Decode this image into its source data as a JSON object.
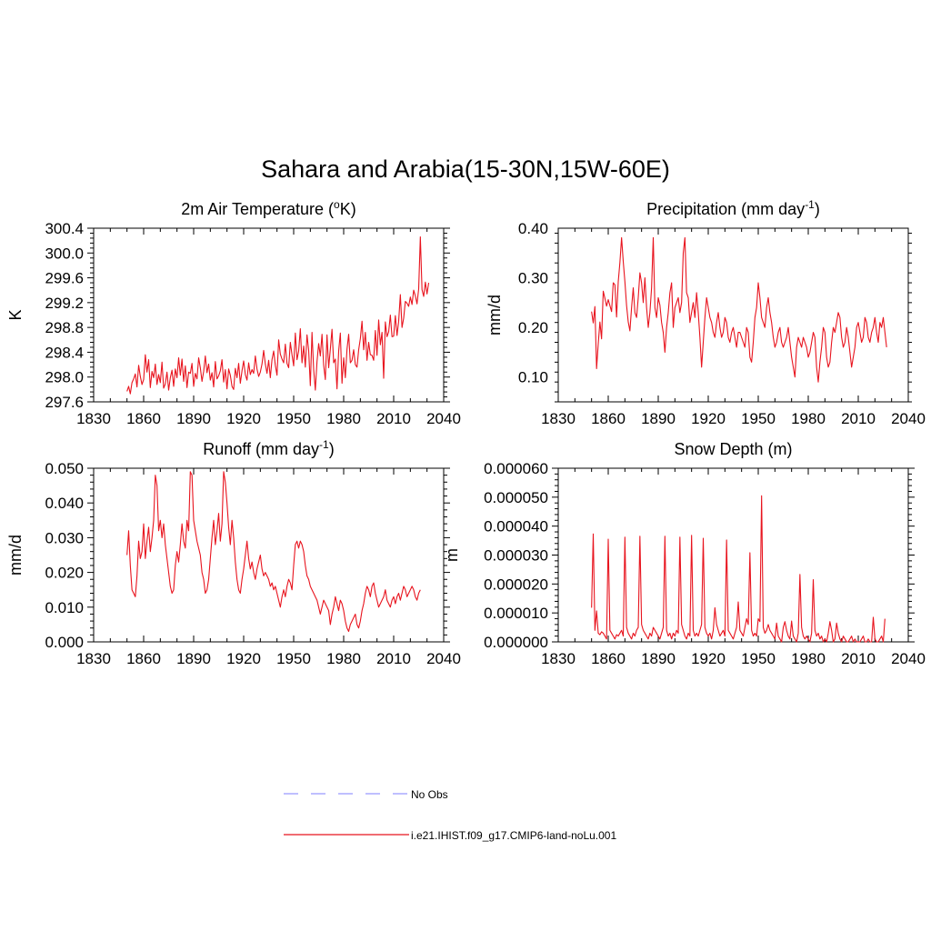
{
  "figure": {
    "title": "Sahara and Arabia(15-30N,15W-60E)",
    "line_color": "#e8141e",
    "obs_color": "#9999ff"
  },
  "legend": {
    "placement": "bottom-center",
    "entries": [
      {
        "label": "No Obs",
        "style": "dashed",
        "color": "#9999ff"
      },
      {
        "label": "i.e21.IHIST.f09_g17.CMIP6-land-noLu.001",
        "style": "solid",
        "color": "#e8141e"
      }
    ]
  },
  "chart_data": [
    {
      "id": "temp",
      "type": "line",
      "title": "2m Air Temperature (",
      "title_sup": "o",
      "title_after": "K)",
      "ylabel": "K",
      "xlim": [
        1830,
        2040
      ],
      "ylim": [
        297.6,
        300.4
      ],
      "xticks": [
        1830,
        1860,
        1890,
        1920,
        1950,
        1980,
        2010,
        2040
      ],
      "yticks": [
        297.6,
        298.0,
        298.4,
        298.8,
        299.2,
        299.6,
        300.0,
        300.4
      ],
      "ytick_labels": [
        "297.6",
        "298.0",
        "298.4",
        "298.8",
        "299.2",
        "299.6",
        "300.0",
        "300.4"
      ],
      "series": [
        {
          "x_start": 1850,
          "values": [
            297.77,
            297.85,
            297.73,
            297.91,
            297.97,
            298.05,
            297.84,
            298.19,
            298.01,
            297.88,
            297.96,
            298.36,
            298.08,
            298.28,
            297.83,
            298.09,
            297.99,
            298.21,
            297.88,
            298.04,
            297.91,
            298.24,
            297.82,
            297.89,
            298.08,
            297.79,
            297.99,
            298.11,
            297.85,
            298.13,
            297.99,
            298.31,
            298.03,
            298.29,
            297.93,
            298.18,
            297.83,
            298.08,
            298.06,
            298.22,
            297.85,
            298.06,
            297.97,
            298.31,
            298.15,
            297.93,
            298.09,
            298.34,
            298.07,
            298.21,
            297.95,
            298.07,
            297.84,
            298.25,
            297.97,
            298.02,
            298.1,
            298.28,
            297.92,
            298.12,
            297.81,
            298.13,
            298.03,
            297.85,
            297.8,
            298.14,
            297.99,
            298.22,
            297.9,
            298.1,
            298.26,
            298.04,
            297.95,
            298.23,
            298.04,
            298.12,
            298.06,
            298.34,
            298.13,
            298.01,
            298.08,
            298.21,
            298.43,
            298.21,
            298.06,
            298.27,
            297.99,
            298.28,
            298.42,
            298.19,
            298.03,
            298.6,
            298.37,
            298.29,
            298.23,
            298.53,
            298.22,
            298.15,
            298.56,
            298.36,
            298.18,
            298.71,
            298.28,
            298.42,
            298.78,
            298.23,
            298.5,
            298.16,
            298.68,
            298.43,
            297.86,
            298.72,
            298.12,
            297.79,
            298.25,
            298.54,
            298.34,
            298.69,
            298.19,
            297.96,
            298.68,
            298.15,
            298.45,
            298.77,
            298.23,
            298.29,
            297.81,
            298.42,
            298.71,
            297.9,
            298.31,
            297.99,
            298.45,
            298.69,
            298.23,
            298.27,
            298.44,
            298.2,
            298.16,
            298.44,
            298.62,
            298.9,
            298.44,
            298.72,
            298.27,
            298.56,
            298.36,
            298.35,
            298.27,
            298.75,
            298.35,
            298.92,
            298.52,
            298.72,
            297.98,
            298.89,
            298.65,
            298.73,
            299.0,
            298.65,
            298.66,
            298.99,
            298.67,
            298.9,
            299.33,
            298.8,
            298.95,
            299.22,
            299.19,
            299.14,
            299.29,
            299.17,
            299.4,
            299.31,
            299.18,
            299.42,
            300.26,
            299.41,
            299.3,
            299.53,
            299.34,
            299.52
          ]
        }
      ]
    },
    {
      "id": "precip",
      "type": "line",
      "title": "Precipitation (mm day",
      "title_sup": "-1",
      "title_after": ")",
      "ylabel": "mm/d",
      "xlim": [
        1830,
        2040
      ],
      "ylim": [
        0.05,
        0.4
      ],
      "xticks": [
        1830,
        1860,
        1890,
        1920,
        1950,
        1980,
        2010,
        2040
      ],
      "yticks": [
        0.1,
        0.2,
        0.3,
        0.4
      ],
      "ytick_labels": [
        "0.10",
        "0.20",
        "0.30",
        "0.40"
      ],
      "series": [
        {
          "x_start": 1850,
          "values": [
            0.232,
            0.209,
            0.242,
            0.117,
            0.167,
            0.211,
            0.177,
            0.273,
            0.259,
            0.243,
            0.256,
            0.244,
            0.232,
            0.29,
            0.286,
            0.221,
            0.292,
            0.331,
            0.381,
            0.333,
            0.292,
            0.244,
            0.211,
            0.193,
            0.24,
            0.28,
            0.23,
            0.22,
            0.26,
            0.31,
            0.29,
            0.25,
            0.3,
            0.24,
            0.2,
            0.23,
            0.28,
            0.381,
            0.24,
            0.22,
            0.26,
            0.245,
            0.21,
            0.19,
            0.15,
            0.2,
            0.23,
            0.27,
            0.29,
            0.2,
            0.24,
            0.25,
            0.26,
            0.23,
            0.25,
            0.35,
            0.381,
            0.27,
            0.26,
            0.21,
            0.23,
            0.25,
            0.22,
            0.27,
            0.23,
            0.18,
            0.12,
            0.17,
            0.22,
            0.26,
            0.24,
            0.22,
            0.21,
            0.19,
            0.18,
            0.21,
            0.23,
            0.2,
            0.18,
            0.19,
            0.22,
            0.21,
            0.18,
            0.17,
            0.19,
            0.2,
            0.18,
            0.16,
            0.19,
            0.19,
            0.18,
            0.17,
            0.16,
            0.2,
            0.19,
            0.14,
            0.13,
            0.17,
            0.22,
            0.24,
            0.29,
            0.26,
            0.22,
            0.21,
            0.2,
            0.24,
            0.26,
            0.23,
            0.21,
            0.18,
            0.16,
            0.17,
            0.19,
            0.2,
            0.17,
            0.16,
            0.17,
            0.18,
            0.2,
            0.17,
            0.14,
            0.12,
            0.1,
            0.16,
            0.18,
            0.17,
            0.16,
            0.18,
            0.17,
            0.16,
            0.14,
            0.15,
            0.17,
            0.19,
            0.18,
            0.12,
            0.09,
            0.13,
            0.16,
            0.2,
            0.19,
            0.14,
            0.12,
            0.13,
            0.17,
            0.2,
            0.19,
            0.21,
            0.23,
            0.22,
            0.18,
            0.16,
            0.17,
            0.2,
            0.18,
            0.15,
            0.12,
            0.14,
            0.16,
            0.2,
            0.21,
            0.19,
            0.17,
            0.18,
            0.22,
            0.21,
            0.18,
            0.17,
            0.19,
            0.2,
            0.22,
            0.19,
            0.17,
            0.21,
            0.2,
            0.22,
            0.19,
            0.16
          ]
        }
      ]
    },
    {
      "id": "runoff",
      "type": "line",
      "title": "Runoff (mm day",
      "title_sup": "-1",
      "title_after": ")",
      "ylabel": "mm/d",
      "xlim": [
        1830,
        2040
      ],
      "ylim": [
        0.0,
        0.05
      ],
      "xticks": [
        1830,
        1860,
        1890,
        1920,
        1950,
        1980,
        2010,
        2040
      ],
      "yticks": [
        0.0,
        0.01,
        0.02,
        0.03,
        0.04,
        0.05
      ],
      "ytick_labels": [
        "0.000",
        "0.010",
        "0.020",
        "0.030",
        "0.040",
        "0.050"
      ],
      "series": [
        {
          "x_start": 1850,
          "values": [
            0.025,
            0.032,
            0.022,
            0.015,
            0.014,
            0.013,
            0.019,
            0.029,
            0.024,
            0.026,
            0.034,
            0.024,
            0.029,
            0.033,
            0.026,
            0.03,
            0.035,
            0.048,
            0.045,
            0.032,
            0.035,
            0.03,
            0.034,
            0.028,
            0.024,
            0.02,
            0.016,
            0.014,
            0.015,
            0.022,
            0.026,
            0.023,
            0.028,
            0.034,
            0.029,
            0.027,
            0.035,
            0.032,
            0.049,
            0.048,
            0.035,
            0.032,
            0.029,
            0.027,
            0.025,
            0.02,
            0.018,
            0.014,
            0.015,
            0.018,
            0.024,
            0.03,
            0.035,
            0.028,
            0.032,
            0.037,
            0.029,
            0.034,
            0.049,
            0.046,
            0.04,
            0.033,
            0.028,
            0.035,
            0.03,
            0.023,
            0.018,
            0.015,
            0.014,
            0.018,
            0.021,
            0.025,
            0.029,
            0.024,
            0.021,
            0.023,
            0.02,
            0.018,
            0.021,
            0.023,
            0.025,
            0.021,
            0.019,
            0.02,
            0.019,
            0.018,
            0.016,
            0.017,
            0.015,
            0.016,
            0.014,
            0.012,
            0.01,
            0.013,
            0.015,
            0.013,
            0.016,
            0.018,
            0.017,
            0.015,
            0.022,
            0.028,
            0.029,
            0.027,
            0.029,
            0.028,
            0.026,
            0.022,
            0.019,
            0.018,
            0.016,
            0.015,
            0.014,
            0.013,
            0.012,
            0.01,
            0.008,
            0.01,
            0.012,
            0.011,
            0.01,
            0.009,
            0.005,
            0.008,
            0.01,
            0.013,
            0.011,
            0.009,
            0.012,
            0.011,
            0.009,
            0.006,
            0.004,
            0.003,
            0.005,
            0.006,
            0.007,
            0.008,
            0.005,
            0.004,
            0.006,
            0.009,
            0.011,
            0.014,
            0.016,
            0.015,
            0.013,
            0.016,
            0.017,
            0.014,
            0.012,
            0.01,
            0.011,
            0.012,
            0.013,
            0.015,
            0.012,
            0.011,
            0.01,
            0.012,
            0.013,
            0.011,
            0.013,
            0.014,
            0.012,
            0.014,
            0.016,
            0.015,
            0.013,
            0.014,
            0.015,
            0.016,
            0.015,
            0.013,
            0.012,
            0.014,
            0.015
          ]
        }
      ]
    },
    {
      "id": "snow",
      "type": "line",
      "title": "Snow Depth (m)",
      "title_sup": "",
      "title_after": "",
      "ylabel": "m",
      "xlim": [
        1830,
        2040
      ],
      "ylim": [
        0.0,
        6e-05
      ],
      "xticks": [
        1830,
        1860,
        1890,
        1920,
        1950,
        1980,
        2010,
        2040
      ],
      "yticks": [
        0.0,
        1e-05,
        2e-05,
        3e-05,
        4e-05,
        5e-05,
        6e-05
      ],
      "ytick_labels": [
        "0.000000",
        "0.000010",
        "0.000020",
        "0.000030",
        "0.000040",
        "0.000050",
        "0.000060"
      ],
      "series": [
        {
          "x_start": 1850,
          "values": [
            1.18e-05,
            3.73e-05,
            4e-06,
            1.07e-05,
            3e-06,
            2.5e-06,
            3.5e-06,
            3e-06,
            2e-06,
            1e-06,
            3.55e-05,
            4e-06,
            3e-06,
            2e-06,
            1e-06,
            2.5e-06,
            2e-06,
            3e-06,
            4e-06,
            2e-06,
            3.62e-05,
            5e-06,
            3e-06,
            2e-06,
            1e-06,
            3e-06,
            2e-06,
            4e-06,
            5e-06,
            3.65e-05,
            6e-06,
            4e-06,
            3e-06,
            2e-06,
            1e-06,
            3e-06,
            2e-06,
            5e-06,
            4e-06,
            3e-06,
            2e-06,
            1e-06,
            3e-06,
            5e-06,
            3.65e-05,
            4e-06,
            2e-06,
            3e-06,
            1e-06,
            3e-06,
            2e-06,
            4e-06,
            3e-06,
            3.62e-05,
            6e-06,
            4e-06,
            2e-06,
            1e-06,
            3e-06,
            2e-06,
            3.68e-05,
            4e-06,
            2e-06,
            3e-06,
            2e-06,
            4e-06,
            6e-06,
            3.58e-05,
            5e-06,
            3e-06,
            2e-06,
            3e-06,
            1e-06,
            4e-06,
            1.18e-05,
            6e-06,
            4e-06,
            2e-06,
            3e-06,
            4e-06,
            2e-06,
            3.52e-05,
            4e-06,
            3e-06,
            2e-06,
            1e-06,
            3e-06,
            5e-06,
            1.38e-05,
            4e-06,
            3e-06,
            2e-06,
            5e-06,
            8e-06,
            6e-06,
            3.08e-05,
            4e-06,
            2e-06,
            3e-06,
            2e-06,
            8e-06,
            7e-06,
            5.05e-05,
            5e-06,
            3e-06,
            4e-06,
            6e-06,
            4e-06,
            3e-06,
            2e-06,
            1e-06,
            6.5e-06,
            2e-06,
            1e-06,
            0.0,
            5e-06,
            7e-06,
            4e-06,
            2e-06,
            1e-06,
            7.2e-06,
            2e-06,
            1e-06,
            0.0,
            3e-06,
            2.33e-05,
            5e-06,
            2e-06,
            1e-06,
            2e-06,
            1e-06,
            0.0,
            3e-06,
            2.15e-05,
            4e-06,
            2e-06,
            3e-06,
            1e-06,
            2e-06,
            0.0,
            1e-06,
            0.0,
            3e-06,
            7e-06,
            4e-06,
            0.0,
            1e-06,
            6.5e-06,
            3e-06,
            1e-06,
            0.0,
            2e-06,
            1e-06,
            0.0,
            0.0,
            1e-06,
            2e-06,
            0.0,
            1e-06,
            0.0,
            0.0,
            0.0,
            1e-06,
            2e-06,
            0.0,
            0.0,
            1e-06,
            0.0,
            0.0,
            8.5e-06,
            1e-06,
            0.0,
            0.0,
            1e-06,
            2e-06,
            0.0,
            8e-06
          ]
        }
      ]
    }
  ]
}
